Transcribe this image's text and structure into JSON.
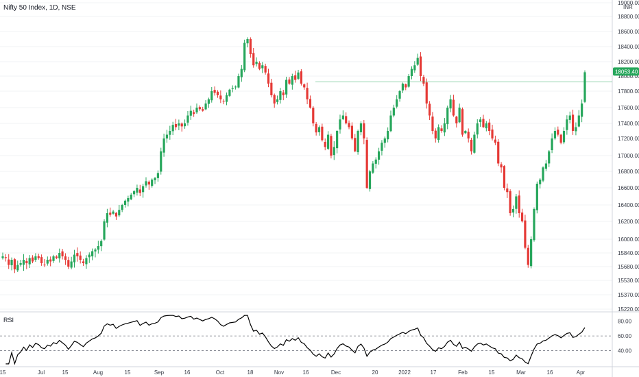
{
  "header": {
    "title": "Nifty 50 Index, 1D, NSE"
  },
  "rsi": {
    "label": "RSI"
  },
  "colors": {
    "up": "#26a65b",
    "down": "#e53935",
    "price_line": "#26a65b",
    "price_tag": "#26a65b",
    "grid": "#f2f3f5",
    "axis_text": "#363a45",
    "rsi_line": "#000000"
  },
  "chart_data": {
    "type": "candlestick",
    "title": "Nifty 50 Index, 1D, NSE",
    "currency_label": "INR",
    "last_price": "18053.40",
    "y_ticks": [
      "19000.00",
      "18800.00",
      "18600.00",
      "18400.00",
      "18200.00",
      "18000.00",
      "17800.00",
      "17600.00",
      "17400.00",
      "17200.00",
      "17000.00",
      "16800.00",
      "16600.00",
      "16400.00",
      "16200.00",
      "16000.00",
      "15840.00",
      "15680.00",
      "15530.00",
      "15370.00",
      "15220.00"
    ],
    "x_ticks": [
      "15",
      "Jul",
      "15",
      "Aug",
      "15",
      "Sep",
      "16",
      "Oct",
      "18",
      "Nov",
      "16",
      "Dec",
      "20",
      "2022",
      "17",
      "Feb",
      "15",
      "Mar",
      "16",
      "Apr"
    ],
    "closes": [
      15800,
      15780,
      15700,
      15760,
      15650,
      15700,
      15720,
      15760,
      15720,
      15780,
      15740,
      15800,
      15780,
      15720,
      15700,
      15760,
      15740,
      15800,
      15780,
      15840,
      15800,
      15760,
      15680,
      15740,
      15820,
      15800,
      15760,
      15720,
      15780,
      15820,
      15860,
      15880,
      15920,
      15980,
      16200,
      16300,
      16280,
      16320,
      16260,
      16340,
      16400,
      16450,
      16480,
      16520,
      16560,
      16600,
      16540,
      16620,
      16680,
      16640,
      16700,
      16720,
      16780,
      17050,
      17200,
      17250,
      17300,
      17380,
      17350,
      17400,
      17360,
      17400,
      17500,
      17560,
      17520,
      17600,
      17580,
      17560,
      17650,
      17700,
      17800,
      17780,
      17750,
      17700,
      17680,
      17750,
      17820,
      17840,
      17860,
      18000,
      18100,
      18450,
      18500,
      18300,
      18150,
      18200,
      18100,
      18150,
      18050,
      17900,
      17750,
      17650,
      17700,
      17800,
      17750,
      17950,
      17900,
      18000,
      17950,
      18050,
      17900,
      17850,
      17700,
      17600,
      17400,
      17280,
      17350,
      17180,
      17100,
      17250,
      17000,
      17100,
      17300,
      17450,
      17500,
      17400,
      17350,
      17200,
      17050,
      17300,
      17400,
      17200,
      16600,
      16800,
      16900,
      16950,
      17050,
      17150,
      17200,
      17300,
      17500,
      17600,
      17700,
      17800,
      17900,
      17850,
      18000,
      18100,
      18150,
      18250,
      18000,
      17900,
      17650,
      17500,
      17300,
      17200,
      17350,
      17300,
      17400,
      17600,
      17700,
      17500,
      17400,
      17600,
      17250,
      17300,
      17200,
      17050,
      17250,
      17400,
      17450,
      17350,
      17400,
      17300,
      17200,
      17150,
      16900,
      16850,
      16600,
      16550,
      16300,
      16350,
      16500,
      16300,
      16200,
      15900,
      15700,
      16000,
      16350,
      16650,
      16700,
      16850,
      16900,
      17050,
      17200,
      17300,
      17250,
      17150,
      17300,
      17450,
      17500,
      17300,
      17350,
      17500,
      17650,
      18053.4
    ],
    "rsi_ticks": [
      "80.00",
      "60.00",
      "40.00"
    ],
    "rsi_overbought": 60,
    "rsi_oversold": 40,
    "rsi_range": [
      20,
      90
    ]
  }
}
